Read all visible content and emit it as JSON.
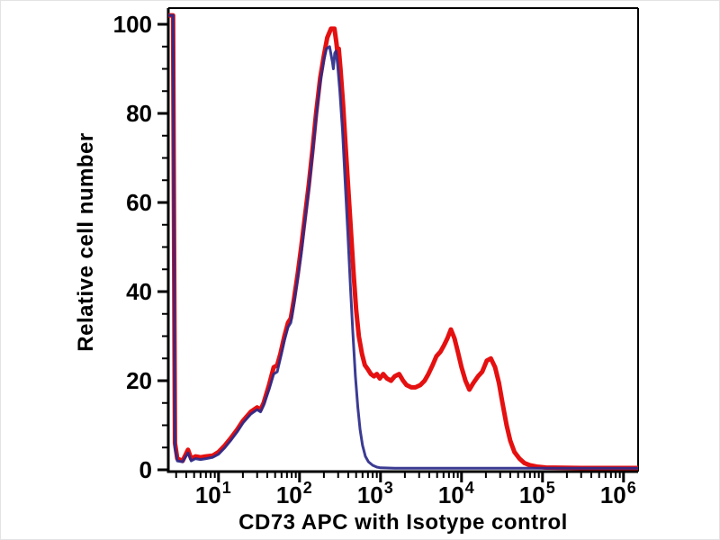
{
  "figure": {
    "background": "#ffffff",
    "axis_color": "#000000"
  },
  "chart_data": {
    "type": "line",
    "subtype": "flow-cytometry-histogram",
    "title": "",
    "xlabel": "CD73 APC with Isotype control",
    "ylabel": "Relative cell number",
    "x_scale": "log",
    "x_range_log": [
      0.38,
      6.18
    ],
    "ylim": [
      0,
      100
    ],
    "grid": false,
    "legend_position": "none",
    "y_major_ticks": [
      0,
      20,
      40,
      60,
      80,
      100
    ],
    "y_minor_step": 5,
    "x_decade_exponents": [
      1,
      2,
      3,
      4,
      5,
      6
    ],
    "x_tick_base": "10",
    "series": [
      {
        "name": "CD73 APC",
        "color": "#e51010",
        "stroke_width": 5,
        "opacity": 1,
        "points": [
          [
            2.4,
            102
          ],
          [
            2.75,
            102
          ],
          [
            2.9,
            6
          ],
          [
            3.1,
            2.5
          ],
          [
            3.6,
            2
          ],
          [
            4.2,
            4.5
          ],
          [
            4.6,
            2.5
          ],
          [
            5.2,
            3
          ],
          [
            6,
            2.8
          ],
          [
            7,
            3
          ],
          [
            8.5,
            3.2
          ],
          [
            10,
            4
          ],
          [
            12,
            5.5
          ],
          [
            14,
            7
          ],
          [
            17,
            9
          ],
          [
            20,
            11
          ],
          [
            25,
            13
          ],
          [
            30,
            14
          ],
          [
            33,
            13.5
          ],
          [
            36,
            15
          ],
          [
            42,
            19
          ],
          [
            48,
            23
          ],
          [
            53,
            23.5
          ],
          [
            58,
            26
          ],
          [
            65,
            30
          ],
          [
            72,
            33
          ],
          [
            78,
            34
          ],
          [
            85,
            38
          ],
          [
            95,
            44
          ],
          [
            105,
            50
          ],
          [
            115,
            56
          ],
          [
            130,
            64
          ],
          [
            145,
            72
          ],
          [
            160,
            80
          ],
          [
            180,
            88
          ],
          [
            200,
            93
          ],
          [
            220,
            97
          ],
          [
            245,
            99
          ],
          [
            270,
            99
          ],
          [
            285,
            96
          ],
          [
            295,
            93.5
          ],
          [
            305,
            94.5
          ],
          [
            320,
            90
          ],
          [
            345,
            82
          ],
          [
            370,
            73
          ],
          [
            400,
            63
          ],
          [
            430,
            54
          ],
          [
            465,
            44
          ],
          [
            500,
            36
          ],
          [
            540,
            30
          ],
          [
            590,
            26
          ],
          [
            640,
            23.5
          ],
          [
            700,
            22.5
          ],
          [
            760,
            21.5
          ],
          [
            830,
            21
          ],
          [
            900,
            21.5
          ],
          [
            980,
            20.5
          ],
          [
            1080,
            21.5
          ],
          [
            1200,
            20.5
          ],
          [
            1350,
            20
          ],
          [
            1500,
            21
          ],
          [
            1700,
            21.5
          ],
          [
            1900,
            20
          ],
          [
            2100,
            19
          ],
          [
            2400,
            18.5
          ],
          [
            2700,
            18.5
          ],
          [
            3100,
            19
          ],
          [
            3500,
            20
          ],
          [
            3900,
            21.5
          ],
          [
            4400,
            23.5
          ],
          [
            4900,
            25.5
          ],
          [
            5500,
            26.5
          ],
          [
            6100,
            28
          ],
          [
            6700,
            29.5
          ],
          [
            7400,
            31.5
          ],
          [
            8200,
            29.5
          ],
          [
            9000,
            26.5
          ],
          [
            10000,
            23
          ],
          [
            11200,
            20
          ],
          [
            12500,
            18
          ],
          [
            14000,
            19.5
          ],
          [
            16000,
            21
          ],
          [
            18000,
            22
          ],
          [
            20500,
            24.5
          ],
          [
            23000,
            25
          ],
          [
            26000,
            23
          ],
          [
            29000,
            19.5
          ],
          [
            32000,
            15
          ],
          [
            36000,
            10
          ],
          [
            40000,
            6.5
          ],
          [
            45000,
            4
          ],
          [
            52000,
            2.5
          ],
          [
            60000,
            1.5
          ],
          [
            70000,
            1
          ],
          [
            85000,
            0.7
          ],
          [
            110000,
            0.5
          ],
          [
            300000,
            0.4
          ],
          [
            1500000,
            0.4
          ]
        ]
      },
      {
        "name": "Isotype control",
        "color": "#2a2a8a",
        "stroke_width": 3,
        "opacity": 0.92,
        "points": [
          [
            2.4,
            102
          ],
          [
            2.75,
            102
          ],
          [
            2.9,
            5
          ],
          [
            3.1,
            2
          ],
          [
            3.6,
            1.8
          ],
          [
            4.2,
            3.8
          ],
          [
            4.6,
            2
          ],
          [
            5.2,
            2.5
          ],
          [
            6,
            2.3
          ],
          [
            7,
            2.5
          ],
          [
            8.5,
            2.8
          ],
          [
            10,
            3.5
          ],
          [
            12,
            5
          ],
          [
            14,
            6.5
          ],
          [
            17,
            8.5
          ],
          [
            20,
            10.5
          ],
          [
            25,
            12.5
          ],
          [
            30,
            13.5
          ],
          [
            33,
            13
          ],
          [
            36,
            14.5
          ],
          [
            42,
            18
          ],
          [
            48,
            21.5
          ],
          [
            53,
            22
          ],
          [
            58,
            25
          ],
          [
            65,
            29
          ],
          [
            72,
            32
          ],
          [
            78,
            33
          ],
          [
            85,
            37
          ],
          [
            95,
            43
          ],
          [
            105,
            48.5
          ],
          [
            115,
            55
          ],
          [
            130,
            63
          ],
          [
            145,
            71
          ],
          [
            160,
            79
          ],
          [
            180,
            87
          ],
          [
            200,
            92
          ],
          [
            215,
            94.5
          ],
          [
            235,
            95
          ],
          [
            255,
            91.5
          ],
          [
            262,
            90
          ],
          [
            272,
            93.5
          ],
          [
            282,
            94
          ],
          [
            295,
            91
          ],
          [
            315,
            85
          ],
          [
            340,
            76
          ],
          [
            365,
            65
          ],
          [
            395,
            53
          ],
          [
            425,
            41
          ],
          [
            455,
            31
          ],
          [
            490,
            21
          ],
          [
            525,
            14
          ],
          [
            560,
            9
          ],
          [
            600,
            5.5
          ],
          [
            650,
            3
          ],
          [
            710,
            1.8
          ],
          [
            800,
            1
          ],
          [
            900,
            0.6
          ],
          [
            1000,
            0.45
          ],
          [
            1500,
            0.35
          ],
          [
            1500000,
            0.35
          ]
        ]
      }
    ]
  }
}
